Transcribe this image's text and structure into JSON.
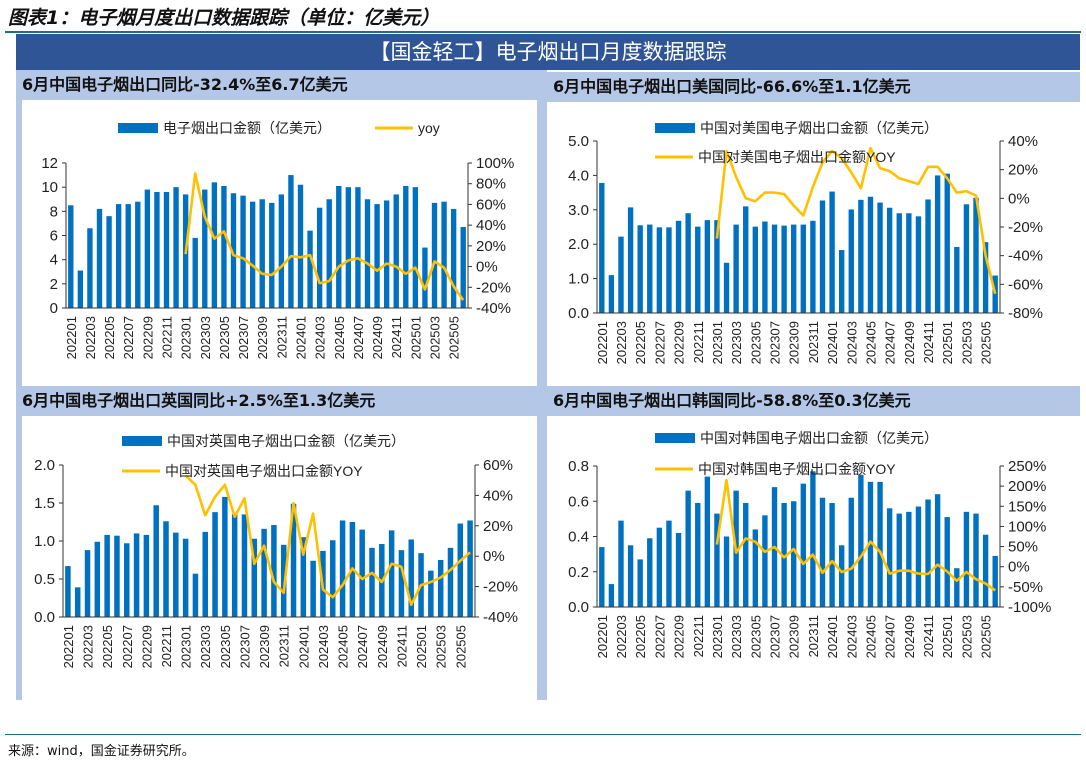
{
  "figure_title": "图表1：电子烟月度出口数据跟踪（单位：亿美元）",
  "banner": "【国金轻工】电子烟出口月度数据跟踪",
  "source": "来源：wind，国金证券研究所。",
  "colors": {
    "bar": "#0070C0",
    "line": "#FFC000",
    "banner": "#2F5597",
    "subheader": "#B4C7E7"
  },
  "chart_data": [
    {
      "type": "bar+line",
      "title": "6月中国电子烟出口同比-32.4%至6.7亿美元",
      "x": [
        "202201",
        "202202",
        "202203",
        "202204",
        "202205",
        "202206",
        "202207",
        "202208",
        "202209",
        "202210",
        "202211",
        "202212",
        "202301",
        "202302",
        "202303",
        "202304",
        "202305",
        "202306",
        "202307",
        "202308",
        "202309",
        "202310",
        "202311",
        "202312",
        "202401",
        "202402",
        "202403",
        "202404",
        "202405",
        "202406",
        "202407",
        "202408",
        "202409",
        "202410",
        "202411",
        "202412",
        "202501",
        "202502",
        "202503",
        "202504",
        "202505",
        "202506"
      ],
      "series": [
        {
          "name": "电子烟出口金额（亿美元）",
          "kind": "bar",
          "axis": "left",
          "values": [
            8.5,
            3.1,
            6.6,
            8.2,
            7.6,
            8.6,
            8.6,
            8.8,
            9.8,
            9.6,
            9.6,
            10.0,
            9.4,
            5.8,
            9.8,
            10.4,
            10.1,
            9.5,
            9.3,
            8.8,
            9.0,
            8.7,
            9.4,
            11.0,
            10.2,
            6.4,
            8.3,
            9.0,
            10.1,
            10.0,
            10.0,
            9.0,
            8.6,
            8.9,
            9.4,
            10.1,
            10.0,
            5.0,
            8.7,
            8.8,
            8.2,
            6.7
          ]
        },
        {
          "name": "yoy",
          "kind": "line",
          "axis": "right",
          "values": [
            null,
            null,
            null,
            null,
            null,
            null,
            null,
            null,
            null,
            null,
            null,
            null,
            12,
            90,
            48,
            27,
            34,
            11,
            8,
            1,
            -7,
            -8,
            0,
            10,
            9,
            11,
            -16,
            -14,
            0,
            6,
            8,
            3,
            -4,
            3,
            0,
            -7,
            -1,
            -22,
            5,
            -1,
            -19,
            -32.4
          ]
        }
      ],
      "ylim_left": [
        0,
        12
      ],
      "yticks_left": [
        "0",
        "2",
        "4",
        "6",
        "8",
        "10",
        "12"
      ],
      "ylim_right": [
        -40,
        100
      ],
      "yticks_right": [
        "-40%",
        "-20%",
        "0%",
        "20%",
        "40%",
        "60%",
        "80%",
        "100%"
      ],
      "legend": "top"
    },
    {
      "type": "bar+line",
      "title": "6月中国电子烟出口美国同比-66.6%至1.1亿美元",
      "x": [
        "202201",
        "202202",
        "202203",
        "202204",
        "202205",
        "202206",
        "202207",
        "202208",
        "202209",
        "202210",
        "202211",
        "202212",
        "202301",
        "202302",
        "202303",
        "202304",
        "202305",
        "202306",
        "202307",
        "202308",
        "202309",
        "202310",
        "202311",
        "202312",
        "202401",
        "202402",
        "202403",
        "202404",
        "202405",
        "202406",
        "202407",
        "202408",
        "202409",
        "202410",
        "202411",
        "202412",
        "202501",
        "202502",
        "202503",
        "202504",
        "202505",
        "202506"
      ],
      "series": [
        {
          "name": "中国对美国电子烟出口金额（亿美元）",
          "kind": "bar",
          "axis": "left",
          "values": [
            3.78,
            1.1,
            2.22,
            3.07,
            2.55,
            2.57,
            2.49,
            2.49,
            2.68,
            2.9,
            2.51,
            2.7,
            2.7,
            1.46,
            2.57,
            3.1,
            2.51,
            2.66,
            2.57,
            2.54,
            2.57,
            2.57,
            2.68,
            3.27,
            3.53,
            1.83,
            3.01,
            3.29,
            3.38,
            3.21,
            3.06,
            2.9,
            2.9,
            2.81,
            3.3,
            4.0,
            4.05,
            1.92,
            3.16,
            3.35,
            2.06,
            1.09
          ]
        },
        {
          "name": "中国对美国电子烟出口金额YOY",
          "kind": "line",
          "axis": "right",
          "values": [
            null,
            null,
            null,
            null,
            null,
            null,
            null,
            null,
            null,
            null,
            null,
            null,
            -28,
            33,
            15,
            0,
            -2,
            4,
            4,
            3,
            -5,
            -12,
            8,
            25,
            33,
            28,
            18,
            7,
            35,
            21,
            19,
            14,
            12,
            10,
            22,
            22,
            14,
            4,
            5,
            2,
            -40,
            -66.6
          ]
        }
      ],
      "ylim_left": [
        0,
        5
      ],
      "yticks_left": [
        "0.0",
        "1.0",
        "2.0",
        "3.0",
        "4.0",
        "5.0"
      ],
      "ylim_right": [
        -80,
        40
      ],
      "yticks_right": [
        "-80%",
        "-60%",
        "-40%",
        "-20%",
        "0%",
        "20%",
        "40%"
      ],
      "legend": "top"
    },
    {
      "type": "bar+line",
      "title": "6月中国电子烟出口英国同比+2.5%至1.3亿美元",
      "x": [
        "202201",
        "202202",
        "202203",
        "202204",
        "202205",
        "202206",
        "202207",
        "202208",
        "202209",
        "202210",
        "202211",
        "202212",
        "202301",
        "202302",
        "202303",
        "202304",
        "202305",
        "202306",
        "202307",
        "202308",
        "202309",
        "202310",
        "202311",
        "202312",
        "202401",
        "202402",
        "202403",
        "202404",
        "202405",
        "202406",
        "202407",
        "202408",
        "202409",
        "202410",
        "202411",
        "202412",
        "202501",
        "202502",
        "202503",
        "202504",
        "202505",
        "202506"
      ],
      "series": [
        {
          "name": "中国对英国电子烟出口金额（亿美元）",
          "kind": "bar",
          "axis": "left",
          "values": [
            0.67,
            0.39,
            0.88,
            0.99,
            1.08,
            1.07,
            0.97,
            1.1,
            1.08,
            1.47,
            1.26,
            1.11,
            1.03,
            0.57,
            1.12,
            1.38,
            1.58,
            1.35,
            1.35,
            1.03,
            1.16,
            1.21,
            0.95,
            1.49,
            1.05,
            0.74,
            0.87,
            1.01,
            1.27,
            1.25,
            1.15,
            0.91,
            0.96,
            1.14,
            0.88,
            1.02,
            0.84,
            0.61,
            0.75,
            0.91,
            1.23,
            1.27
          ]
        },
        {
          "name": "中国对英国电子烟出口金额YOY",
          "kind": "line",
          "axis": "right",
          "values": [
            null,
            null,
            null,
            null,
            null,
            null,
            null,
            null,
            null,
            null,
            null,
            null,
            53,
            47,
            27,
            39,
            47,
            26,
            38,
            -5,
            7,
            -17,
            -24,
            35,
            1,
            28,
            -22,
            -27,
            -19,
            -8,
            -15,
            -11,
            -17,
            -5,
            -7,
            -32,
            -19,
            -17,
            -14,
            -9,
            -3,
            2.5
          ]
        }
      ],
      "ylim_left": [
        0,
        2
      ],
      "yticks_left": [
        "0.0",
        "0.5",
        "1.0",
        "1.5",
        "2.0"
      ],
      "ylim_right": [
        -40,
        60
      ],
      "yticks_right": [
        "-40%",
        "-20%",
        "0%",
        "20%",
        "40%",
        "60%"
      ],
      "legend": "top"
    },
    {
      "type": "bar+line",
      "title": "6月中国电子烟出口韩国同比-58.8%至0.3亿美元",
      "x": [
        "202201",
        "202202",
        "202203",
        "202204",
        "202205",
        "202206",
        "202207",
        "202208",
        "202209",
        "202210",
        "202211",
        "202212",
        "202301",
        "202302",
        "202303",
        "202304",
        "202305",
        "202306",
        "202307",
        "202308",
        "202309",
        "202310",
        "202311",
        "202312",
        "202401",
        "202402",
        "202403",
        "202404",
        "202405",
        "202406",
        "202407",
        "202408",
        "202409",
        "202410",
        "202411",
        "202412",
        "202501",
        "202502",
        "202503",
        "202504",
        "202505",
        "202506"
      ],
      "series": [
        {
          "name": "中国对韩国电子烟出口金额（亿美元）",
          "kind": "bar",
          "axis": "left",
          "values": [
            0.34,
            0.13,
            0.49,
            0.35,
            0.27,
            0.39,
            0.45,
            0.49,
            0.42,
            0.66,
            0.59,
            0.74,
            0.53,
            0.4,
            0.66,
            0.59,
            0.44,
            0.52,
            0.68,
            0.59,
            0.6,
            0.7,
            0.77,
            0.62,
            0.59,
            0.35,
            0.62,
            0.75,
            0.71,
            0.71,
            0.56,
            0.53,
            0.54,
            0.57,
            0.61,
            0.64,
            0.51,
            0.22,
            0.54,
            0.53,
            0.41,
            0.29
          ]
        },
        {
          "name": "中国对韩国电子烟出口金额YOY",
          "kind": "line",
          "axis": "right",
          "values": [
            null,
            null,
            null,
            null,
            null,
            null,
            null,
            null,
            null,
            null,
            null,
            null,
            55,
            215,
            35,
            70,
            62,
            37,
            49,
            23,
            44,
            7,
            30,
            -15,
            14,
            -13,
            -5,
            25,
            62,
            37,
            -17,
            -10,
            -10,
            -17,
            -18,
            5,
            -12,
            -35,
            -13,
            -31,
            -42,
            -58.8
          ]
        }
      ],
      "ylim_left": [
        0,
        0.8
      ],
      "yticks_left": [
        "0.0",
        "0.2",
        "0.4",
        "0.6",
        "0.8"
      ],
      "ylim_right": [
        -100,
        250
      ],
      "yticks_right": [
        "-100%",
        "-50%",
        "0%",
        "50%",
        "100%",
        "150%",
        "200%",
        "250%"
      ],
      "legend": "top"
    }
  ]
}
